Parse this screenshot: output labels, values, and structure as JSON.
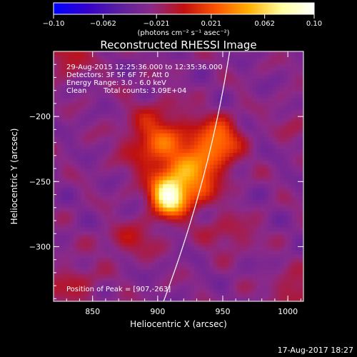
{
  "chart_data": {
    "type": "heatmap",
    "title": "Reconstructed RHESSI Image",
    "xlabel": "Heliocentric X (arcsec)",
    "ylabel": "Heliocentric Y (arcsec)",
    "xlim": [
      820,
      1012
    ],
    "ylim": [
      -342,
      -150
    ],
    "x_ticks": [
      850,
      900,
      950,
      1000
    ],
    "x_tick_labels": [
      "850",
      "900",
      "950",
      "1000"
    ],
    "y_ticks": [
      -200,
      -250,
      -300
    ],
    "y_tick_labels": [
      "−200",
      "−250",
      "−300"
    ],
    "colorbar": {
      "min": -0.1,
      "max": 0.1,
      "ticks": [
        -0.1,
        -0.062,
        -0.021,
        0.021,
        0.062,
        0.1
      ],
      "tick_labels": [
        "−0.10",
        "−0.062",
        "−0.021",
        "0.021",
        "0.062",
        "0.10"
      ],
      "units": "(photons cm⁻² s⁻¹ asec⁻²)",
      "colors": [
        "#0000ff",
        "#3300cc",
        "#5a1fa0",
        "#8a2a8a",
        "#c01010",
        "#ff5500",
        "#ffb000",
        "#ffffa0",
        "#ffffff"
      ]
    },
    "info_lines": [
      "29-Aug-2015 12:25:36.000 to 12:35:36.000",
      "Detectors: 3F 5F 6F 7F, Att 0",
      "Energy Range: 3.0 - 6.0 keV",
      "Clean",
      "Total counts: 3.09E+04"
    ],
    "peak_label": "Position of Peak = [907,-263]",
    "peak": [
      907,
      -263
    ],
    "limb_color": "#ffffff",
    "sources": [
      {
        "x": 908,
        "y": -262,
        "amp": 0.1,
        "sx": 9,
        "sy": 10
      },
      {
        "x": 924,
        "y": -250,
        "amp": 0.06,
        "sx": 14,
        "sy": 14
      },
      {
        "x": 900,
        "y": -220,
        "amp": 0.05,
        "sx": 16,
        "sy": 18
      },
      {
        "x": 940,
        "y": -225,
        "amp": 0.045,
        "sx": 14,
        "sy": 14
      },
      {
        "x": 950,
        "y": -215,
        "amp": 0.03,
        "sx": 10,
        "sy": 10
      },
      {
        "x": 880,
        "y": -295,
        "amp": 0.025,
        "sx": 14,
        "sy": 8
      },
      {
        "x": 955,
        "y": -290,
        "amp": 0.02,
        "sx": 14,
        "sy": 9
      },
      {
        "x": 830,
        "y": -150,
        "amp": 0.03,
        "sx": 12,
        "sy": 12
      },
      {
        "x": 835,
        "y": -330,
        "amp": 0.02,
        "sx": 14,
        "sy": 12
      },
      {
        "x": 1005,
        "y": -335,
        "amp": 0.025,
        "sx": 12,
        "sy": 10
      },
      {
        "x": 1005,
        "y": -205,
        "amp": 0.01,
        "sx": 10,
        "sy": 10
      }
    ],
    "timestamp": "17-Aug-2017 18:27"
  }
}
